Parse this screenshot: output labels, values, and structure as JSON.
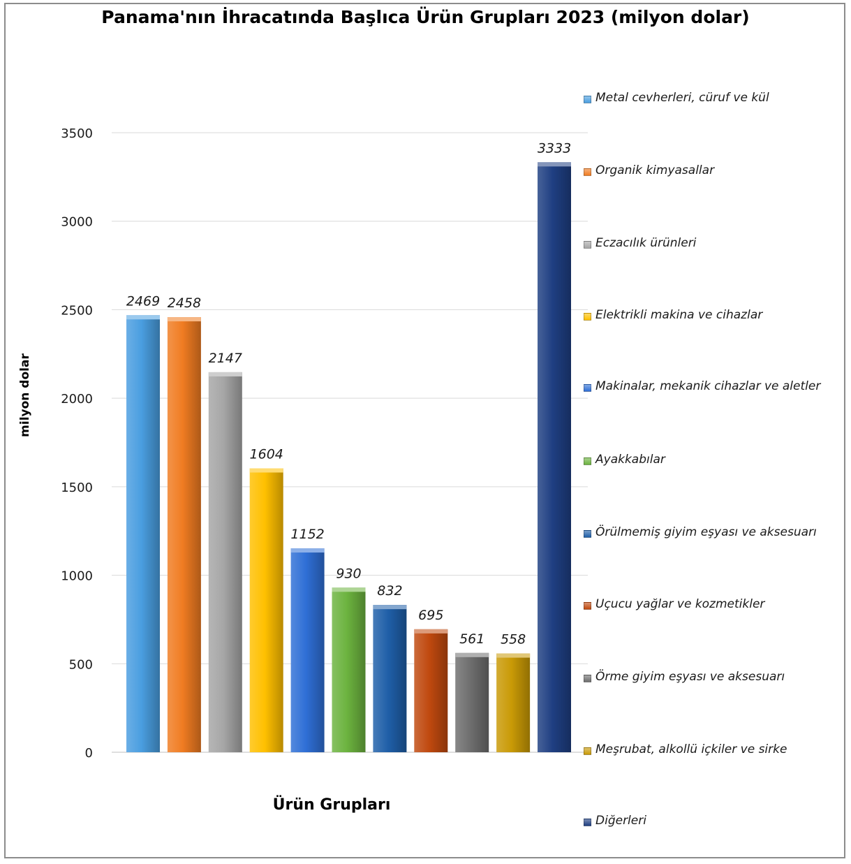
{
  "chart_data": {
    "type": "bar",
    "title": "Panama'nın İhracatında Başlıca Ürün Grupları 2023 (milyon dolar)",
    "xlabel": "Ürün Grupları",
    "ylabel": "milyon dolar",
    "ylim": [
      0,
      3500
    ],
    "yticks": [
      "0",
      "500",
      "1000",
      "1500",
      "2000",
      "2500",
      "3000",
      "3500"
    ],
    "grid": true,
    "legend_position": "right",
    "categories": [
      "Metal cevherleri, cüruf ve kül",
      "Organik kimyasallar",
      "Eczacılık ürünleri",
      "Elektrikli makina ve cihazlar",
      "Makinalar, mekanik cihazlar ve aletler",
      "Ayakkabılar",
      "Örülmemiş giyim eşyası ve aksesuarı",
      "Uçucu yağlar ve kozmetikler",
      "Örme giyim eşyası ve aksesuarı",
      "Meşrubat, alkollü içkiler ve sirke",
      "Diğerleri"
    ],
    "values": [
      2469,
      2458,
      2147,
      1604,
      1152,
      930,
      832,
      695,
      561,
      558,
      3333
    ],
    "data_labels": [
      "2469",
      "2458",
      "2147",
      "1604",
      "1152",
      "930",
      "832",
      "695",
      "561",
      "558",
      "3333"
    ],
    "colors": [
      "#4a9ee0",
      "#f07c22",
      "#a6a6a6",
      "#ffc000",
      "#2f6fd6",
      "#6cb33f",
      "#1f5fa8",
      "#c0490f",
      "#6e6e6e",
      "#c99a06",
      "#1f3f82"
    ]
  }
}
